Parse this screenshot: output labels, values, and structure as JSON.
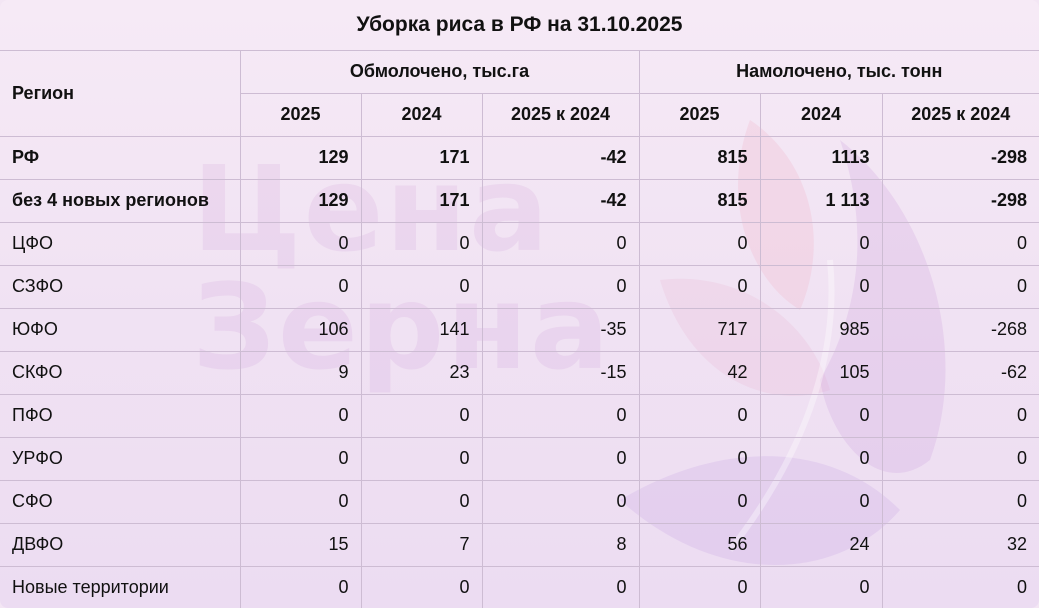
{
  "title": "Уборка риса в РФ на 31.10.2025",
  "watermark": {
    "line1": "Цена",
    "line2": "Зерна"
  },
  "header": {
    "region": "Регион",
    "group1": "Обмолочено, тыс.га",
    "group2": "Намолочено, тыс. тонн",
    "col_2025": "2025",
    "col_2024": "2024",
    "col_diff": "2025 к 2024"
  },
  "rows": [
    {
      "name": "РФ",
      "a25": "129",
      "a24": "171",
      "ad": "-42",
      "b25": "815",
      "b24": "1113",
      "bd": "-298",
      "bold": true
    },
    {
      "name": "без 4 новых регионов",
      "a25": "129",
      "a24": "171",
      "ad": "-42",
      "b25": "815",
      "b24": "1 113",
      "bd": "-298",
      "bold": true
    },
    {
      "name": "ЦФО",
      "a25": "0",
      "a24": "0",
      "ad": "0",
      "b25": "0",
      "b24": "0",
      "bd": "0"
    },
    {
      "name": "СЗФО",
      "a25": "0",
      "a24": "0",
      "ad": "0",
      "b25": "0",
      "b24": "0",
      "bd": "0"
    },
    {
      "name": "ЮФО",
      "a25": "106",
      "a24": "141",
      "ad": "-35",
      "b25": "717",
      "b24": "985",
      "bd": "-268"
    },
    {
      "name": "СКФО",
      "a25": "9",
      "a24": "23",
      "ad": "-15",
      "b25": "42",
      "b24": "105",
      "bd": "-62"
    },
    {
      "name": "ПФО",
      "a25": "0",
      "a24": "0",
      "ad": "0",
      "b25": "0",
      "b24": "0",
      "bd": "0"
    },
    {
      "name": "УРФО",
      "a25": "0",
      "a24": "0",
      "ad": "0",
      "b25": "0",
      "b24": "0",
      "bd": "0"
    },
    {
      "name": "СФО",
      "a25": "0",
      "a24": "0",
      "ad": "0",
      "b25": "0",
      "b24": "0",
      "bd": "0"
    },
    {
      "name": "ДВФО",
      "a25": "15",
      "a24": "7",
      "ad": "8",
      "b25": "56",
      "b24": "24",
      "bd": "32"
    },
    {
      "name": "Новые территории",
      "a25": "0",
      "a24": "0",
      "ad": "0",
      "b25": "0",
      "b24": "0",
      "bd": "0"
    }
  ]
}
